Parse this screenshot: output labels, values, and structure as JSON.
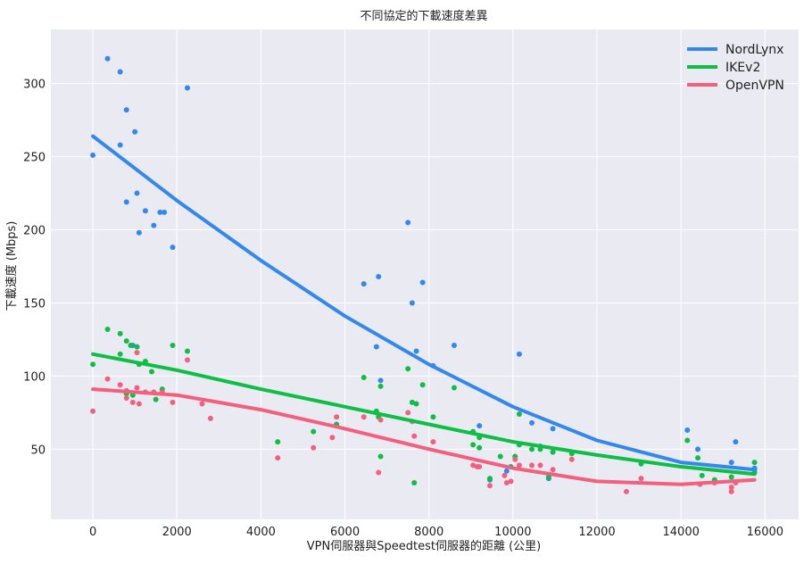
{
  "chart_data": {
    "type": "scatter",
    "title": "不同協定的下載速度差異",
    "xlabel": "VPN伺服器與Speedtest伺服器的距離 (公里)",
    "ylabel": "下載速度 (Mbps)",
    "xlim": [
      -1000,
      16800
    ],
    "ylim": [
      2,
      337
    ],
    "xticks": [
      0,
      2000,
      4000,
      6000,
      8000,
      10000,
      12000,
      14000,
      16000
    ],
    "yticks": [
      50,
      100,
      150,
      200,
      250,
      300
    ],
    "grid": true,
    "legend_position": "top-right",
    "background": "#eaeaf2",
    "series": [
      {
        "name": "NordLynx",
        "color": "#3388ee",
        "trend": [
          [
            0,
            264
          ],
          [
            2000,
            220
          ],
          [
            4000,
            179
          ],
          [
            6000,
            141
          ],
          [
            8000,
            108
          ],
          [
            10000,
            79
          ],
          [
            12000,
            56
          ],
          [
            14000,
            41
          ],
          [
            15750,
            36
          ]
        ],
        "points": [
          [
            0,
            251
          ],
          [
            350,
            317
          ],
          [
            650,
            308
          ],
          [
            650,
            258
          ],
          [
            800,
            282
          ],
          [
            800,
            219
          ],
          [
            1000,
            267
          ],
          [
            1050,
            225
          ],
          [
            1100,
            198
          ],
          [
            1250,
            213
          ],
          [
            1450,
            203
          ],
          [
            1600,
            212
          ],
          [
            1700,
            212
          ],
          [
            1900,
            188
          ],
          [
            2250,
            297
          ],
          [
            950,
            121
          ],
          [
            6450,
            163
          ],
          [
            6750,
            120
          ],
          [
            6800,
            168
          ],
          [
            6850,
            97
          ],
          [
            7500,
            205
          ],
          [
            7600,
            150
          ],
          [
            7700,
            117
          ],
          [
            7850,
            164
          ],
          [
            8100,
            107
          ],
          [
            8600,
            121
          ],
          [
            9200,
            66
          ],
          [
            9450,
            29
          ],
          [
            9850,
            35
          ],
          [
            10150,
            115
          ],
          [
            10450,
            68
          ],
          [
            10650,
            52
          ],
          [
            10850,
            30
          ],
          [
            10950,
            64
          ],
          [
            14150,
            63
          ],
          [
            14400,
            50
          ],
          [
            15200,
            41
          ],
          [
            15300,
            55
          ],
          [
            15750,
            37
          ],
          [
            15750,
            36
          ]
        ]
      },
      {
        "name": "IKEv2",
        "color": "#0ebe45",
        "trend": [
          [
            0,
            115
          ],
          [
            2000,
            104
          ],
          [
            4000,
            91
          ],
          [
            6000,
            79
          ],
          [
            8000,
            67
          ],
          [
            10000,
            55
          ],
          [
            12000,
            46
          ],
          [
            14000,
            38
          ],
          [
            15750,
            33
          ]
        ],
        "points": [
          [
            0,
            108
          ],
          [
            350,
            132
          ],
          [
            650,
            129
          ],
          [
            650,
            115
          ],
          [
            800,
            124
          ],
          [
            800,
            88
          ],
          [
            900,
            121
          ],
          [
            950,
            87
          ],
          [
            1050,
            120
          ],
          [
            1100,
            108
          ],
          [
            1250,
            110
          ],
          [
            1400,
            103
          ],
          [
            1500,
            84
          ],
          [
            1650,
            91
          ],
          [
            1900,
            121
          ],
          [
            2250,
            117
          ],
          [
            4400,
            55
          ],
          [
            5250,
            62
          ],
          [
            5800,
            67
          ],
          [
            6450,
            99
          ],
          [
            6750,
            76
          ],
          [
            6850,
            93
          ],
          [
            6800,
            72
          ],
          [
            6850,
            45
          ],
          [
            7500,
            105
          ],
          [
            7600,
            82
          ],
          [
            7700,
            81
          ],
          [
            7650,
            27
          ],
          [
            7850,
            94
          ],
          [
            8100,
            72
          ],
          [
            8600,
            92
          ],
          [
            9050,
            62
          ],
          [
            9050,
            53
          ],
          [
            9200,
            58
          ],
          [
            9200,
            51
          ],
          [
            9450,
            30
          ],
          [
            9700,
            45
          ],
          [
            9950,
            38
          ],
          [
            10050,
            45
          ],
          [
            10150,
            74
          ],
          [
            10150,
            53
          ],
          [
            10450,
            50
          ],
          [
            10650,
            50
          ],
          [
            10850,
            31
          ],
          [
            10950,
            48
          ],
          [
            11400,
            47
          ],
          [
            13050,
            40
          ],
          [
            14150,
            56
          ],
          [
            14400,
            44
          ],
          [
            14500,
            32
          ],
          [
            14800,
            29
          ],
          [
            15200,
            31
          ],
          [
            15750,
            41
          ],
          [
            15750,
            34
          ]
        ]
      },
      {
        "name": "OpenVPN",
        "color": "#f2607e",
        "trend": [
          [
            0,
            91
          ],
          [
            2000,
            87
          ],
          [
            4000,
            77
          ],
          [
            6000,
            64
          ],
          [
            8000,
            50
          ],
          [
            10000,
            37
          ],
          [
            12000,
            28
          ],
          [
            14000,
            26
          ],
          [
            15750,
            29
          ]
        ],
        "points": [
          [
            0,
            76
          ],
          [
            350,
            98
          ],
          [
            650,
            94
          ],
          [
            800,
            85
          ],
          [
            800,
            90
          ],
          [
            950,
            82
          ],
          [
            1050,
            92
          ],
          [
            1100,
            81
          ],
          [
            1050,
            116
          ],
          [
            1250,
            89
          ],
          [
            1450,
            89
          ],
          [
            1650,
            89
          ],
          [
            1900,
            82
          ],
          [
            2250,
            111
          ],
          [
            2600,
            81
          ],
          [
            2800,
            71
          ],
          [
            4400,
            44
          ],
          [
            5250,
            51
          ],
          [
            5700,
            58
          ],
          [
            5800,
            72
          ],
          [
            6450,
            72
          ],
          [
            6800,
            34
          ],
          [
            6850,
            70
          ],
          [
            7500,
            75
          ],
          [
            7600,
            69
          ],
          [
            7650,
            59
          ],
          [
            8100,
            55
          ],
          [
            9050,
            39
          ],
          [
            9150,
            38
          ],
          [
            9200,
            38
          ],
          [
            9450,
            25
          ],
          [
            9800,
            32
          ],
          [
            9850,
            27
          ],
          [
            9950,
            28
          ],
          [
            10050,
            43
          ],
          [
            10150,
            39
          ],
          [
            10450,
            39
          ],
          [
            10650,
            39
          ],
          [
            10950,
            36
          ],
          [
            11400,
            43
          ],
          [
            12700,
            21
          ],
          [
            13050,
            30
          ],
          [
            14450,
            26
          ],
          [
            14800,
            27
          ],
          [
            15200,
            21
          ],
          [
            15200,
            24
          ],
          [
            15300,
            27
          ]
        ]
      }
    ]
  }
}
